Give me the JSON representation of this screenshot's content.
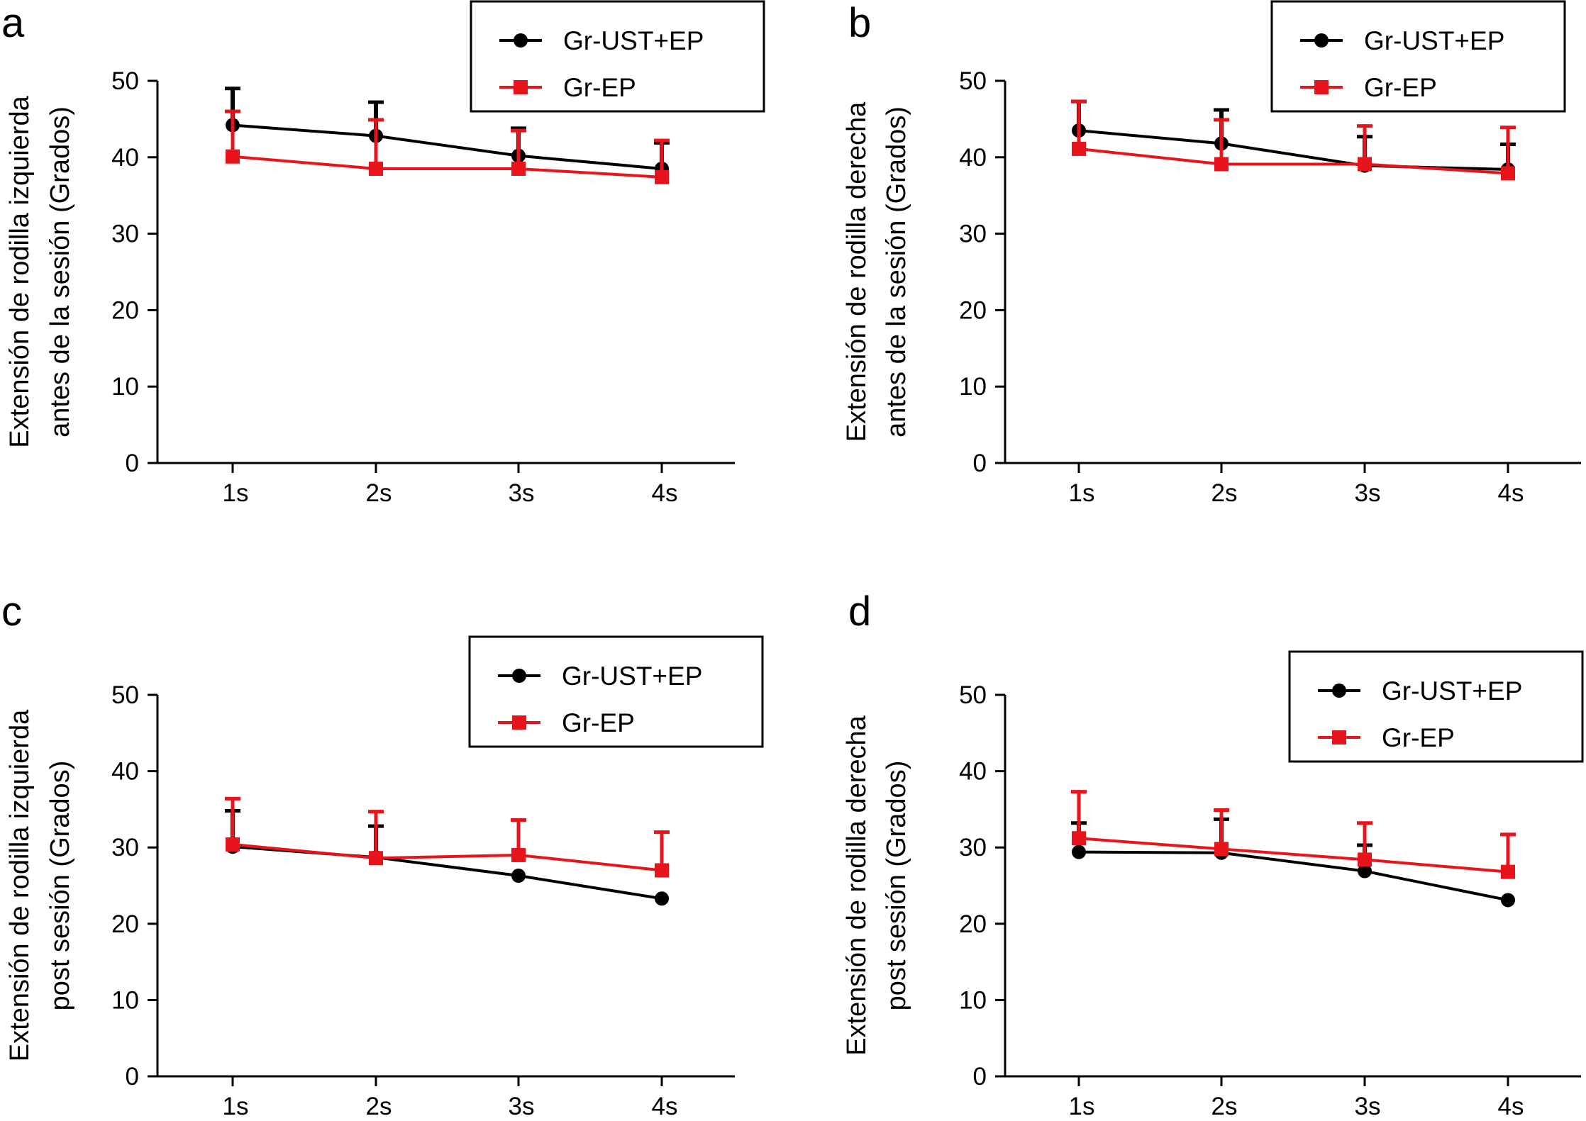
{
  "colors": {
    "series1": "#000000",
    "series2": "#e8141b",
    "axis": "#000000"
  },
  "chart_data": [
    {
      "panel_label": "a",
      "type": "line",
      "ylabel_lines": [
        "Extensión de rodilla izquierda",
        "antes de la sesión (Grados)"
      ],
      "categories": [
        "1s",
        "2s",
        "3s",
        "4s"
      ],
      "ylim": [
        0,
        50
      ],
      "yticks": [
        "0",
        "10",
        "20",
        "30",
        "40",
        "50"
      ],
      "legend_position": "top-right",
      "series": [
        {
          "name": "Gr-UST+EP",
          "marker": "circle",
          "values": [
            44.2,
            42.8,
            40.2,
            38.5
          ],
          "errors": [
            4.8,
            4.4,
            3.6,
            3.4
          ]
        },
        {
          "name": "Gr-EP",
          "marker": "square",
          "values": [
            40.1,
            38.5,
            38.5,
            37.4
          ],
          "errors": [
            5.9,
            6.4,
            5.0,
            4.8
          ]
        }
      ]
    },
    {
      "panel_label": "b",
      "type": "line",
      "ylabel_lines": [
        "Extensión de rodilla derecha",
        "antes de la sesión (Grados)"
      ],
      "categories": [
        "1s",
        "2s",
        "3s",
        "4s"
      ],
      "ylim": [
        0,
        50
      ],
      "yticks": [
        "0",
        "10",
        "20",
        "30",
        "40",
        "50"
      ],
      "legend_position": "top-right",
      "series": [
        {
          "name": "Gr-UST+EP",
          "marker": "circle",
          "values": [
            43.5,
            41.8,
            38.9,
            38.4
          ],
          "errors": [
            3.8,
            4.4,
            3.8,
            3.3
          ]
        },
        {
          "name": "Gr-EP",
          "marker": "square",
          "values": [
            41.1,
            39.1,
            39.1,
            37.9
          ],
          "errors": [
            6.2,
            5.8,
            5.0,
            6.0
          ]
        }
      ]
    },
    {
      "panel_label": "c",
      "type": "line",
      "ylabel_lines": [
        "Extensión de rodilla izquierda",
        "post sesión (Grados)"
      ],
      "categories": [
        "1s",
        "2s",
        "3s",
        "4s"
      ],
      "ylim": [
        0,
        50
      ],
      "yticks": [
        "0",
        "10",
        "20",
        "30",
        "40",
        "50"
      ],
      "legend_position": "top-right",
      "series": [
        {
          "name": "Gr-UST+EP",
          "marker": "circle",
          "values": [
            30.1,
            28.7,
            26.3,
            23.3
          ],
          "errors": [
            4.7,
            4.1,
            0,
            0
          ]
        },
        {
          "name": "Gr-EP",
          "marker": "square",
          "values": [
            30.4,
            28.6,
            29.0,
            27.0
          ],
          "errors": [
            6.0,
            6.1,
            4.6,
            5.0
          ]
        }
      ]
    },
    {
      "panel_label": "d",
      "type": "line",
      "ylabel_lines": [
        "Extensión de rodilla derecha",
        "post sesión (Grados)"
      ],
      "categories": [
        "1s",
        "2s",
        "3s",
        "4s"
      ],
      "ylim": [
        0,
        50
      ],
      "yticks": [
        "0",
        "10",
        "20",
        "30",
        "40",
        "50"
      ],
      "legend_position": "top-right",
      "series": [
        {
          "name": "Gr-UST+EP",
          "marker": "circle",
          "values": [
            29.4,
            29.3,
            26.9,
            23.1
          ],
          "errors": [
            3.8,
            4.4,
            3.4,
            0
          ]
        },
        {
          "name": "Gr-EP",
          "marker": "square",
          "values": [
            31.2,
            29.8,
            28.4,
            26.8
          ],
          "errors": [
            6.1,
            5.1,
            4.8,
            4.9
          ]
        }
      ]
    }
  ]
}
